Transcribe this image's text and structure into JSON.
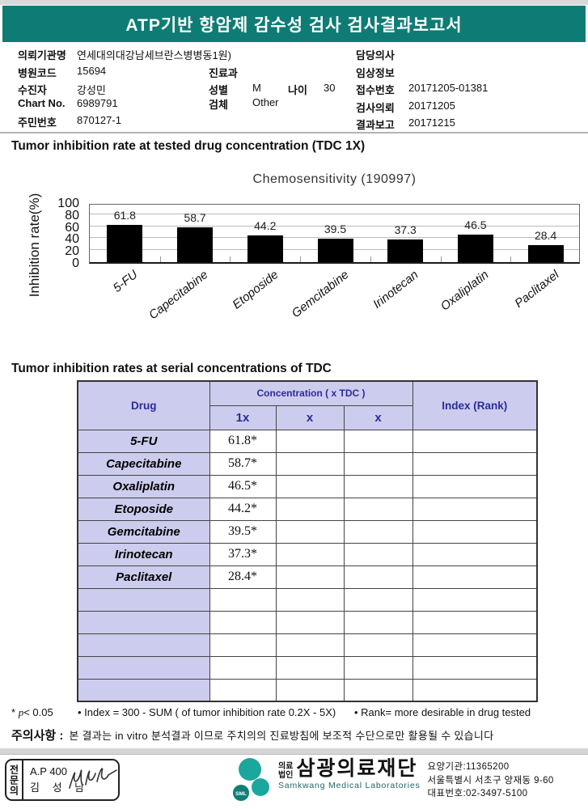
{
  "report_title": "ATP기반 항암제 감수성 검사 검사결과보고서",
  "colors": {
    "header_bg": "#0e7c74",
    "table_header_bg": "#ccccee",
    "table_header_text": "#2b2b99",
    "bar_color": "#000000",
    "logo_teal": "#1ba79d",
    "logo_dark_teal": "#0c8076"
  },
  "patient_info": {
    "labels": {
      "org": "의뢰기관명",
      "hospital_code": "병원코드",
      "patient": "수진자",
      "chart_no": "Chart No.",
      "resident_no": "주민번호",
      "dept": "진료과",
      "sex": "성별",
      "age": "나이",
      "specimen": "검체",
      "doctor": "담당의사",
      "clinical_info": "임상정보",
      "receipt_no": "접수번호",
      "request_date": "검사의뢰",
      "report_date": "결과보고"
    },
    "values": {
      "org": "연세대의대강남세브란스병병동1원)",
      "hospital_code": "15694",
      "patient": "강성민",
      "chart_no": "6989791",
      "resident_no": "870127-1",
      "dept": "",
      "sex": "M",
      "age": "30",
      "specimen": "Other",
      "doctor": "",
      "clinical_info": "",
      "receipt_no": "20171205-01381",
      "request_date": "20171205",
      "report_date": "20171215"
    }
  },
  "section1_heading": "Tumor inhibition rate at tested drug concentration (TDC 1X)",
  "chart_data": {
    "type": "bar",
    "title": "Chemosensitivity (190997)",
    "ylabel": "Inhibition rate(%)",
    "categories": [
      "5-FU",
      "Capecitabine",
      "Etoposide",
      "Gemcitabine",
      "Irinotecan",
      "Oxaliplatin",
      "Paclitaxel"
    ],
    "values": [
      61.8,
      58.7,
      44.2,
      39.5,
      37.3,
      46.5,
      28.4
    ],
    "ylim": [
      0,
      100
    ],
    "yticks": [
      0,
      20,
      40,
      60,
      80,
      100
    ],
    "grid": true,
    "legend": "none"
  },
  "section2_heading": "Tumor inhibition rates at serial concentrations of TDC",
  "table": {
    "col_drug": "Drug",
    "col_concentration": "Concentration ( x TDC )",
    "sub": [
      "1x",
      "x",
      "x"
    ],
    "col_index": "Index (Rank)",
    "rows": [
      {
        "drug": "5-FU",
        "c1": "61.8*",
        "c2": "",
        "c3": "",
        "index": ""
      },
      {
        "drug": "Capecitabine",
        "c1": "58.7*",
        "c2": "",
        "c3": "",
        "index": ""
      },
      {
        "drug": "Oxaliplatin",
        "c1": "46.5*",
        "c2": "",
        "c3": "",
        "index": ""
      },
      {
        "drug": "Etoposide",
        "c1": "44.2*",
        "c2": "",
        "c3": "",
        "index": ""
      },
      {
        "drug": "Gemcitabine",
        "c1": "39.5*",
        "c2": "",
        "c3": "",
        "index": ""
      },
      {
        "drug": "Irinotecan",
        "c1": "37.3*",
        "c2": "",
        "c3": "",
        "index": ""
      },
      {
        "drug": "Paclitaxel",
        "c1": "28.4*",
        "c2": "",
        "c3": "",
        "index": ""
      }
    ],
    "empty_row_count": 5
  },
  "footnotes": {
    "sig_star": "*",
    "sig_p": "p",
    "sig_rest": "< 0.05",
    "index_note": "• Index = 300 - SUM ( of tumor inhibition rate 0.2X  -  5X)",
    "rank_note": "• Rank= more desirable in drug tested"
  },
  "notice": {
    "label": "주의사항 :",
    "text": "본 결과는 in vitro 분석결과 이므로 주치의의 진료방침에 보조적 수단으로만 활용될 수 있습니다"
  },
  "footer": {
    "stamp": {
      "side_label": "전문의",
      "line1": "A.P 400",
      "line2": "김 성 남"
    },
    "logo": {
      "sml": "SML",
      "prefix_top": "의료",
      "prefix_bottom": "법인",
      "name": "삼광의료재단",
      "subtitle": "Samkwang Medical Laboratories",
      "info_lines": [
        "요양기관:11365200",
        "서울특별시 서초구 양재동 9-60",
        "대표번호:02-3497-5100"
      ]
    }
  }
}
